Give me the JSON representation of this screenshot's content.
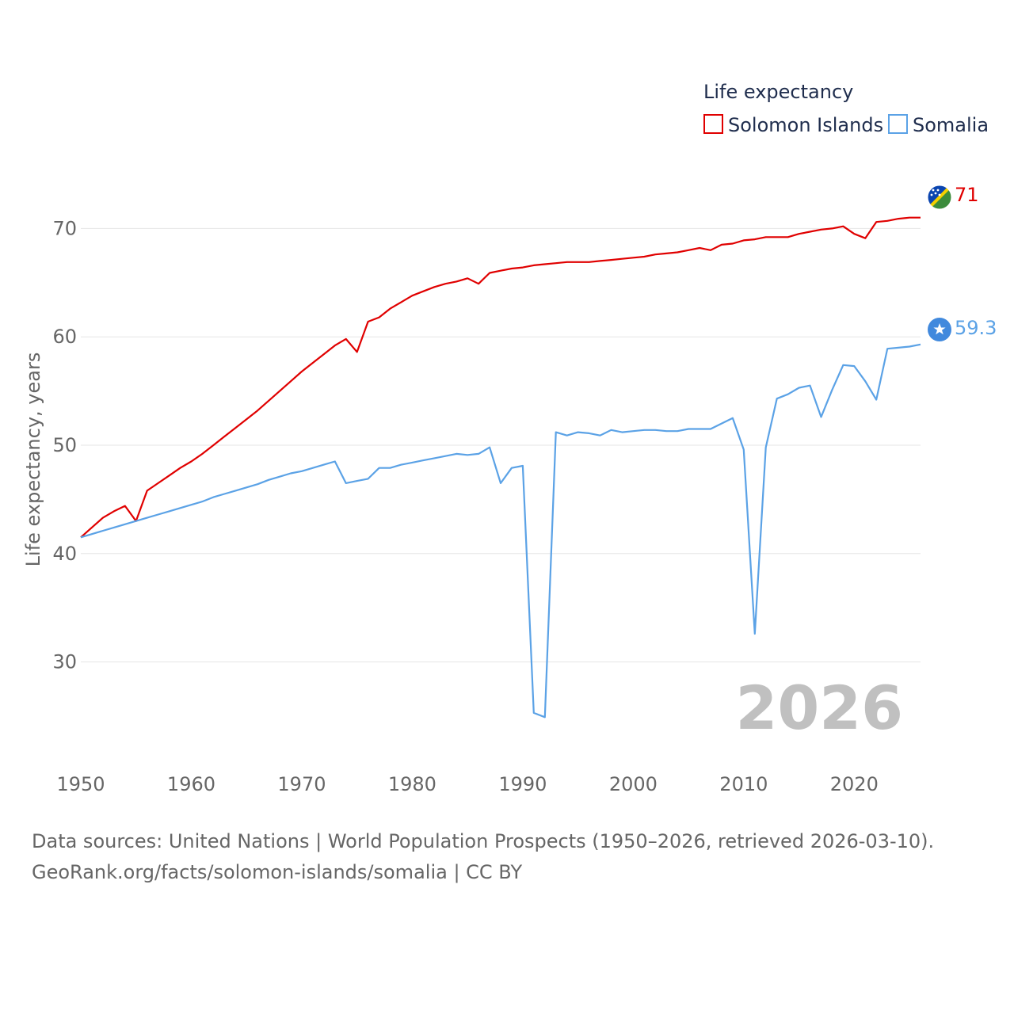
{
  "chart_data": {
    "type": "line",
    "legend_title": "Life expectancy",
    "ylabel": "Life expectancy, years",
    "xlabel": "",
    "xlim": [
      1950,
      2026
    ],
    "ylim": [
      22,
      75
    ],
    "x_ticks": [
      1950,
      1960,
      1970,
      1980,
      1990,
      2000,
      2010,
      2020
    ],
    "y_ticks": [
      30,
      40,
      50,
      60,
      70
    ],
    "current_year": "2026",
    "legend_position": "top-right",
    "x": [
      1950,
      1951,
      1952,
      1953,
      1954,
      1955,
      1956,
      1957,
      1958,
      1959,
      1960,
      1961,
      1962,
      1963,
      1964,
      1965,
      1966,
      1967,
      1968,
      1969,
      1970,
      1971,
      1972,
      1973,
      1974,
      1975,
      1976,
      1977,
      1978,
      1979,
      1980,
      1981,
      1982,
      1983,
      1984,
      1985,
      1986,
      1987,
      1988,
      1989,
      1990,
      1991,
      1992,
      1993,
      1994,
      1995,
      1996,
      1997,
      1998,
      1999,
      2000,
      2001,
      2002,
      2003,
      2004,
      2005,
      2006,
      2007,
      2008,
      2009,
      2010,
      2011,
      2012,
      2013,
      2014,
      2015,
      2016,
      2017,
      2018,
      2019,
      2020,
      2021,
      2022,
      2023,
      2024,
      2025,
      2026
    ],
    "series": [
      {
        "name": "Solomon Islands",
        "color": "#e00000",
        "end_label": "71",
        "flag": "solomon-islands-flag-icon",
        "values": [
          41.5,
          42.4,
          43.3,
          43.9,
          44.4,
          43.0,
          45.8,
          46.5,
          47.2,
          47.9,
          48.5,
          49.2,
          50.0,
          50.8,
          51.6,
          52.4,
          53.2,
          54.1,
          55.0,
          55.9,
          56.8,
          57.6,
          58.4,
          59.2,
          59.8,
          58.6,
          61.4,
          61.8,
          62.6,
          63.2,
          63.8,
          64.2,
          64.6,
          64.9,
          65.1,
          65.4,
          64.9,
          65.9,
          66.1,
          66.3,
          66.4,
          66.6,
          66.7,
          66.8,
          66.9,
          66.9,
          66.9,
          67.0,
          67.1,
          67.2,
          67.3,
          67.4,
          67.6,
          67.7,
          67.8,
          68.0,
          68.2,
          68.0,
          68.5,
          68.6,
          68.9,
          69.0,
          69.2,
          69.2,
          69.2,
          69.5,
          69.7,
          69.9,
          70.0,
          70.2,
          69.5,
          69.1,
          70.6,
          70.7,
          70.9,
          71.0,
          71.0
        ]
      },
      {
        "name": "Somalia",
        "color": "#5ba2e6",
        "end_label": "59.3",
        "flag": "somalia-flag-icon",
        "values": [
          41.5,
          41.8,
          42.1,
          42.4,
          42.7,
          43.0,
          43.3,
          43.6,
          43.9,
          44.2,
          44.5,
          44.8,
          45.2,
          45.5,
          45.8,
          46.1,
          46.4,
          46.8,
          47.1,
          47.4,
          47.6,
          47.9,
          48.2,
          48.5,
          46.5,
          46.7,
          46.9,
          47.9,
          47.9,
          48.2,
          48.4,
          48.6,
          48.8,
          49.0,
          49.2,
          49.1,
          49.2,
          49.8,
          46.5,
          47.9,
          48.1,
          25.3,
          24.9,
          51.2,
          50.9,
          51.2,
          51.1,
          50.9,
          51.4,
          51.2,
          51.3,
          51.4,
          51.4,
          51.3,
          51.3,
          51.5,
          51.5,
          51.5,
          52.0,
          52.5,
          49.6,
          32.6,
          49.8,
          54.3,
          54.7,
          55.3,
          55.5,
          52.6,
          55.1,
          57.4,
          57.3,
          55.9,
          54.2,
          58.9,
          59.0,
          59.1,
          59.3
        ]
      }
    ]
  },
  "source": {
    "line1": "Data sources: United Nations | World Population Prospects (1950–2026, retrieved 2026-03-10).",
    "line2": "GeoRank.org/facts/solomon-islands/somalia | CC BY"
  }
}
